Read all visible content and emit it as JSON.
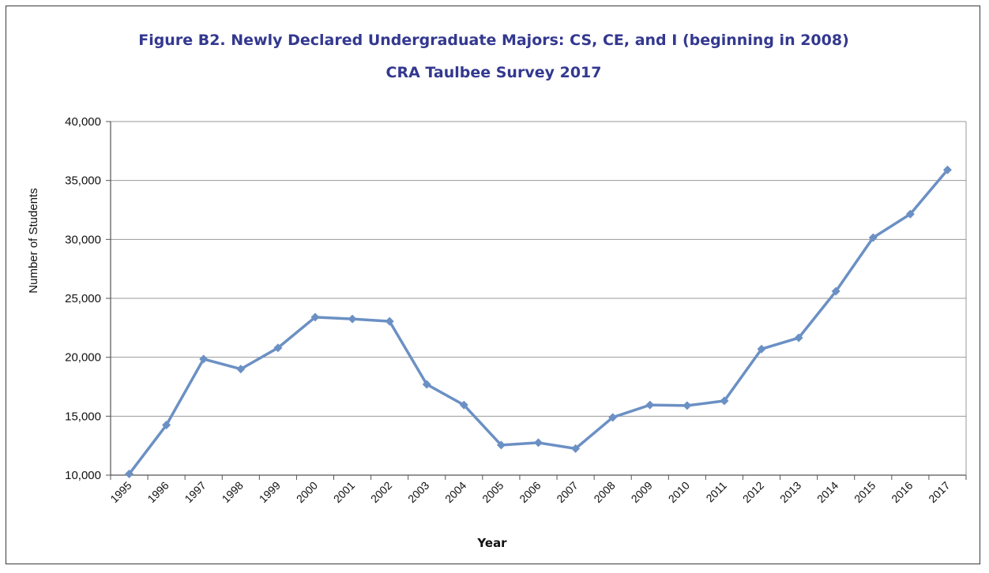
{
  "chart_data": {
    "type": "line",
    "title": "Figure B2. Newly Declared Undergraduate Majors: CS, CE, and I (beginning in 2008)",
    "subtitle": "CRA Taulbee Survey 2017",
    "xlabel": "Year",
    "ylabel": "Number of Students",
    "ylim": [
      10000,
      40000
    ],
    "yticks": [
      10000,
      15000,
      20000,
      25000,
      30000,
      35000,
      40000
    ],
    "ytick_labels": [
      "10,000",
      "15,000",
      "20,000",
      "25,000",
      "30,000",
      "35,000",
      "40,000"
    ],
    "grid": true,
    "legend": "none",
    "categories": [
      "1995",
      "1996",
      "1997",
      "1998",
      "1999",
      "2000",
      "2001",
      "2002",
      "2003",
      "2004",
      "2005",
      "2006",
      "2007",
      "2008",
      "2009",
      "2010",
      "2011",
      "2012",
      "2013",
      "2014",
      "2015",
      "2016",
      "2017"
    ],
    "series": [
      {
        "values": [
          10100,
          14250,
          19850,
          19000,
          20800,
          23400,
          23250,
          23050,
          17700,
          15950,
          12550,
          12750,
          12250,
          14900,
          15950,
          15900,
          16300,
          20700,
          21650,
          25600,
          30150,
          32150,
          35900
        ],
        "color": "#6b90c4"
      }
    ]
  }
}
